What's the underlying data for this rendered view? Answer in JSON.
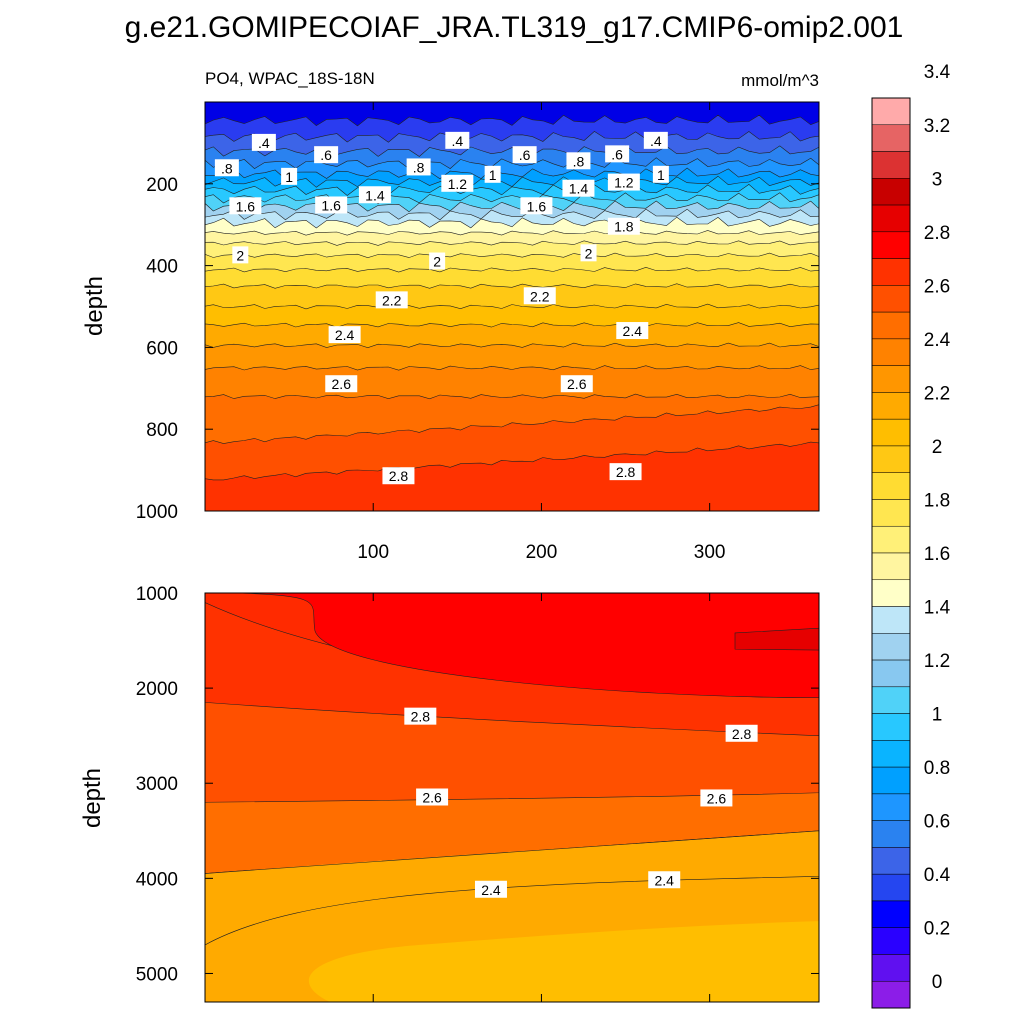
{
  "chart_data": [
    {
      "type": "contour",
      "panel": "upper",
      "title": "g.e21.GOMIPECOIAF_JRA.TL319_g17.CMIP6-omip2.001",
      "left_label": "PO4, WPAC_18S-18N",
      "right_label": "mmol/m^3",
      "xlabel": "",
      "ylabel": "depth",
      "xlim": [
        0,
        365
      ],
      "ylim": [
        1000,
        0
      ],
      "x_ticks": [
        "100",
        "200",
        "300"
      ],
      "y_ticks": [
        "200",
        "400",
        "600",
        "800",
        "1000"
      ],
      "contour_labels": [
        {
          "text": ".4",
          "x": 35,
          "y": 100
        },
        {
          "text": ".4",
          "x": 150,
          "y": 95
        },
        {
          "text": ".4",
          "x": 268,
          "y": 95
        },
        {
          "text": ".6",
          "x": 72,
          "y": 130
        },
        {
          "text": ".6",
          "x": 190,
          "y": 130
        },
        {
          "text": ".6",
          "x": 245,
          "y": 128
        },
        {
          "text": ".8",
          "x": 13,
          "y": 162
        },
        {
          "text": ".8",
          "x": 127,
          "y": 160
        },
        {
          "text": ".8",
          "x": 222,
          "y": 145
        },
        {
          "text": "1",
          "x": 50,
          "y": 183
        },
        {
          "text": "1",
          "x": 171,
          "y": 178
        },
        {
          "text": "1",
          "x": 271,
          "y": 178
        },
        {
          "text": "1.2",
          "x": 150,
          "y": 200
        },
        {
          "text": "1.2",
          "x": 249,
          "y": 197
        },
        {
          "text": "1.4",
          "x": 101,
          "y": 228
        },
        {
          "text": "1.4",
          "x": 222,
          "y": 212
        },
        {
          "text": "1.6",
          "x": 24,
          "y": 255
        },
        {
          "text": "1.6",
          "x": 75,
          "y": 253
        },
        {
          "text": "1.6",
          "x": 197,
          "y": 255
        },
        {
          "text": "1.8",
          "x": 249,
          "y": 305
        },
        {
          "text": "2",
          "x": 21,
          "y": 375
        },
        {
          "text": "2",
          "x": 138,
          "y": 390
        },
        {
          "text": "2",
          "x": 228,
          "y": 370
        },
        {
          "text": "2.2",
          "x": 111,
          "y": 485
        },
        {
          "text": "2.2",
          "x": 199,
          "y": 475
        },
        {
          "text": "2.4",
          "x": 83,
          "y": 570
        },
        {
          "text": "2.4",
          "x": 254,
          "y": 560
        },
        {
          "text": "2.6",
          "x": 81,
          "y": 690
        },
        {
          "text": "2.6",
          "x": 221,
          "y": 690
        },
        {
          "text": "2.8",
          "x": 115,
          "y": 915
        },
        {
          "text": "2.8",
          "x": 250,
          "y": 905
        }
      ]
    },
    {
      "type": "contour",
      "panel": "lower",
      "xlabel": "",
      "ylabel": "depth",
      "xlim": [
        0,
        365
      ],
      "ylim": [
        5300,
        1000
      ],
      "y_ticks": [
        "1000",
        "2000",
        "3000",
        "4000",
        "5000"
      ],
      "contour_labels": [
        {
          "text": "2.8",
          "x": 128,
          "y": 2300
        },
        {
          "text": "2.8",
          "x": 319,
          "y": 2480
        },
        {
          "text": "2.6",
          "x": 135,
          "y": 3150
        },
        {
          "text": "2.6",
          "x": 304,
          "y": 3160
        },
        {
          "text": "2.4",
          "x": 170,
          "y": 4120
        },
        {
          "text": "2.4",
          "x": 273,
          "y": 4020
        }
      ]
    }
  ],
  "colorbar": {
    "labels": [
      "0",
      "0.2",
      "0.4",
      "0.6",
      "0.8",
      "1",
      "1.2",
      "1.4",
      "1.6",
      "1.8",
      "2",
      "2.2",
      "2.4",
      "2.6",
      "2.8",
      "3",
      "3.2",
      "3.4"
    ],
    "colors": [
      "#8c1de8",
      "#6010f0",
      "#2a00ff",
      "#0000ff",
      "#2546f0",
      "#3c64e8",
      "#2a82f0",
      "#1e96ff",
      "#00a0ff",
      "#0ab4ff",
      "#28c8ff",
      "#50d2f8",
      "#88c8f0",
      "#a0d2f0",
      "#bee6f8",
      "#ffffc8",
      "#fff5a0",
      "#fff078",
      "#ffe650",
      "#ffdc32",
      "#ffc814",
      "#ffbe00",
      "#ffaa00",
      "#ff9600",
      "#ff8200",
      "#ff6e00",
      "#ff5000",
      "#ff3200",
      "#ff0000",
      "#e60000",
      "#c80000",
      "#dc3232",
      "#e66464",
      "#ffaaaa"
    ]
  }
}
